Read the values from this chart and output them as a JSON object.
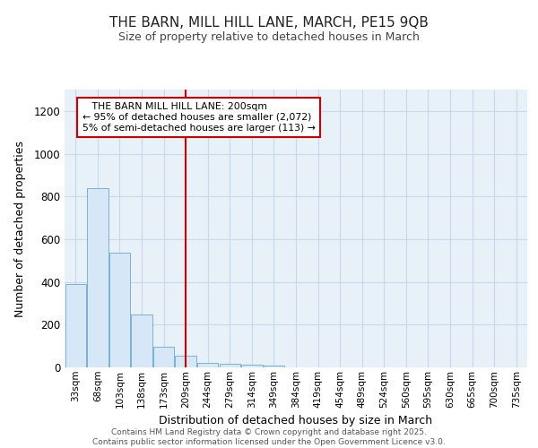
{
  "title_line1": "THE BARN, MILL HILL LANE, MARCH, PE15 9QB",
  "title_line2": "Size of property relative to detached houses in March",
  "xlabel": "Distribution of detached houses by size in March",
  "ylabel": "Number of detached properties",
  "categories": [
    "33sqm",
    "68sqm",
    "103sqm",
    "138sqm",
    "173sqm",
    "209sqm",
    "244sqm",
    "279sqm",
    "314sqm",
    "349sqm",
    "384sqm",
    "419sqm",
    "454sqm",
    "489sqm",
    "524sqm",
    "560sqm",
    "595sqm",
    "630sqm",
    "665sqm",
    "700sqm",
    "735sqm"
  ],
  "values": [
    390,
    840,
    535,
    248,
    95,
    55,
    20,
    15,
    12,
    10,
    0,
    0,
    0,
    0,
    0,
    0,
    0,
    0,
    0,
    0,
    0
  ],
  "bar_color": "#d6e8f7",
  "bar_edge_color": "#7ab0d8",
  "vline_x_idx": 5,
  "vline_color": "#cc0000",
  "annotation_text_line1": "   THE BARN MILL HILL LANE: 200sqm",
  "annotation_text_line2": "← 95% of detached houses are smaller (2,072)",
  "annotation_text_line3": "5% of semi-detached houses are larger (113) →",
  "annotation_box_color": "#cc0000",
  "ylim": [
    0,
    1300
  ],
  "yticks": [
    0,
    200,
    400,
    600,
    800,
    1000,
    1200
  ],
  "grid_color": "#c8d8ec",
  "bg_color": "#e8f0f8",
  "footer_line1": "Contains HM Land Registry data © Crown copyright and database right 2025.",
  "footer_line2": "Contains public sector information licensed under the Open Government Licence v3.0."
}
